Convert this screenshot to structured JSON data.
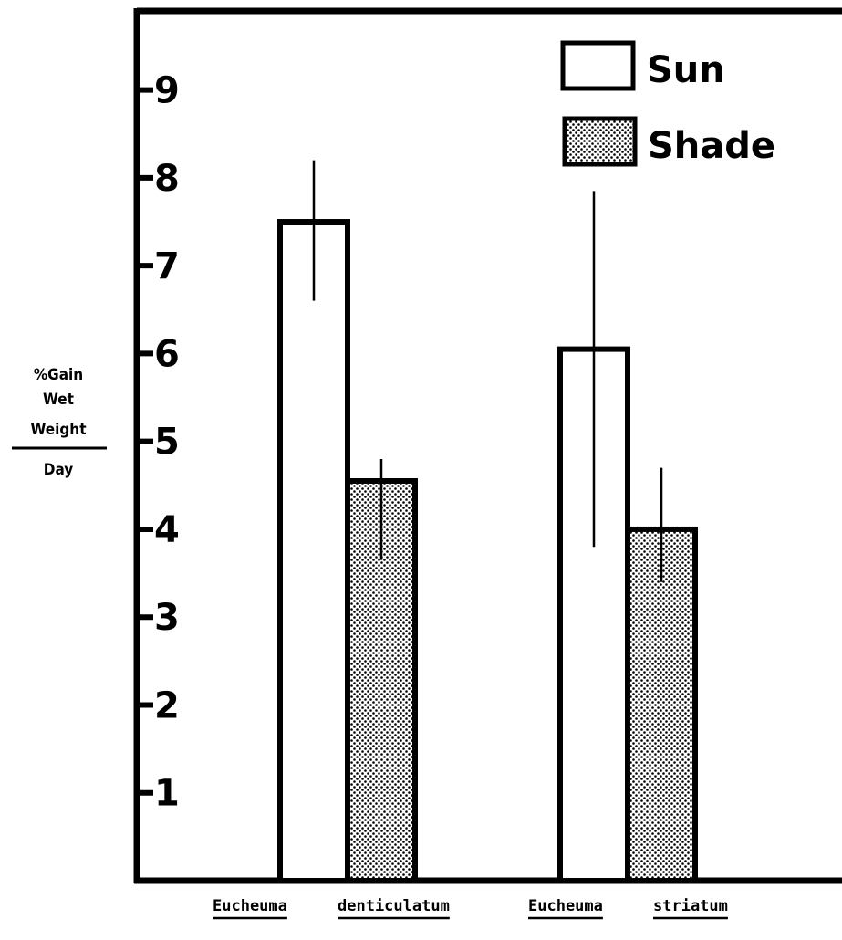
{
  "chart_data": {
    "type": "bar",
    "title": "",
    "ylabel": {
      "numerator": [
        "%Gain",
        "Wet",
        "Weight"
      ],
      "denominator": "Day"
    },
    "xlabel": "",
    "ylim": [
      0,
      9.9
    ],
    "yticks": [
      "1",
      "2",
      "3",
      "4",
      "5",
      "6",
      "7",
      "8",
      "9"
    ],
    "categories": [
      {
        "words": [
          "Eucheuma",
          "denticulatum"
        ]
      },
      {
        "words": [
          "Eucheuma",
          "striatum"
        ]
      }
    ],
    "series": [
      {
        "name": "Sun",
        "fill": "#ffffff",
        "values": [
          7.5,
          6.05
        ],
        "err_low": [
          6.6,
          3.8
        ],
        "err_high": [
          8.2,
          7.85
        ]
      },
      {
        "name": "Shade",
        "fill": "stipple",
        "values": [
          4.55,
          4.0
        ],
        "err_low": [
          3.65,
          3.4
        ],
        "err_high": [
          4.8,
          4.7
        ]
      }
    ],
    "legend": "top-right",
    "grid": false
  }
}
